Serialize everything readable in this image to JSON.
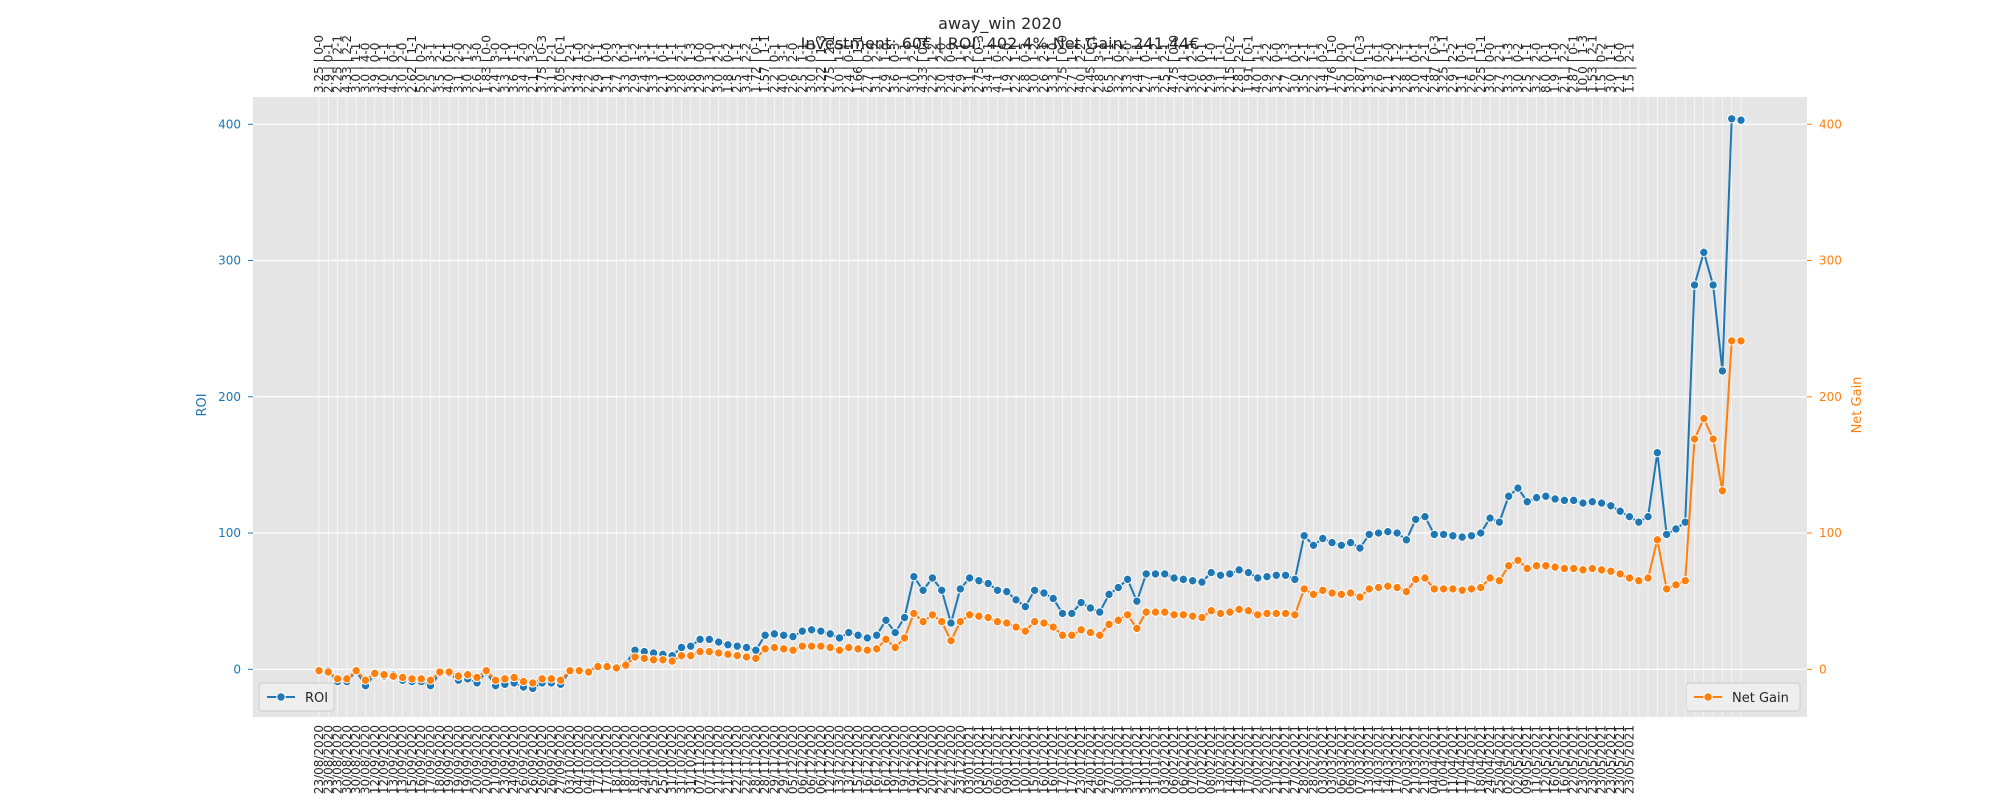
{
  "title_line1": "away_win 2020",
  "title_line2": "Investment: 60€ | ROI: 402.4% Net Gain: 241.44€",
  "colors": {
    "roi": "#1f77b4",
    "net_gain": "#ff7f0e",
    "plot_bg": "#e5e5e5",
    "grid": "#ffffff"
  },
  "chart_data": {
    "type": "line",
    "title": "away_win 2020\nInvestment: 60€ | ROI: 402.4% Net Gain: 241.44€",
    "ylabel_left": "ROI",
    "ylabel_right": "Net Gain",
    "ylim_left": [
      -35,
      420
    ],
    "ylim_right": [
      -35,
      420
    ],
    "yticks_left": [
      0,
      100,
      200,
      300,
      400
    ],
    "yticks_right": [
      0,
      100,
      200,
      300,
      400
    ],
    "grid": true,
    "legend": [
      {
        "label": "ROI",
        "placement": "lower-left"
      },
      {
        "label": "Net Gain",
        "placement": "lower-right"
      }
    ],
    "n_points": 142,
    "x_labels": [
      "23/08/2020",
      "23/08/2020",
      "23/08/2020",
      "30/08/2020",
      "30/08/2020",
      "30/08/2020",
      "12/09/2020",
      "12/09/2020",
      "13/09/2020",
      "13/09/2020",
      "15/09/2020",
      "16/09/2020",
      "17/09/2020",
      "18/09/2020",
      "19/09/2020",
      "19/09/2020",
      "19/09/2020",
      "20/09/2020",
      "20/09/2020",
      "21/09/2020",
      "23/09/2020",
      "24/09/2020",
      "26/09/2020",
      "26/09/2020",
      "26/09/2020",
      "26/09/2020",
      "27/09/2020",
      "03/10/2020",
      "04/10/2020",
      "04/10/2020",
      "17/10/2020",
      "17/10/2020",
      "18/10/2020",
      "18/10/2020",
      "18/10/2020",
      "24/10/2020",
      "25/10/2020",
      "25/10/2020",
      "31/10/2020",
      "31/10/2020",
      "31/10/2020",
      "07/11/2020",
      "07/11/2020",
      "21/11/2020",
      "21/11/2020",
      "22/11/2020",
      "22/11/2020",
      "28/11/2020",
      "28/11/2020",
      "29/11/2020",
      "29/11/2020",
      "05/12/2020",
      "06/12/2020",
      "06/12/2020",
      "06/12/2020",
      "12/12/2020",
      "13/12/2020",
      "13/12/2020",
      "15/12/2020",
      "16/12/2020",
      "16/12/2020",
      "16/12/2020",
      "19/12/2020",
      "19/12/2020",
      "19/12/2020",
      "20/12/2020",
      "20/12/2020",
      "22/12/2020",
      "22/12/2020",
      "23/12/2020",
      "03/01/2021",
      "03/01/2021",
      "05/01/2021",
      "06/01/2021",
      "09/01/2021",
      "10/01/2021",
      "10/01/2021",
      "15/01/2021",
      "16/01/2021",
      "16/01/2021",
      "17/01/2021",
      "17/01/2021",
      "23/01/2021",
      "24/01/2021",
      "26/01/2021",
      "27/01/2021",
      "30/01/2021",
      "30/01/2021",
      "31/01/2021",
      "31/01/2021",
      "31/01/2021",
      "03/02/2021",
      "06/02/2021",
      "06/02/2021",
      "07/02/2021",
      "07/02/2021",
      "08/02/2021",
      "13/02/2021",
      "14/02/2021",
      "14/02/2021",
      "17/02/2021",
      "20/02/2021",
      "20/02/2021",
      "21/02/2021",
      "21/02/2021",
      "27/02/2021",
      "28/02/2021",
      "28/02/2021",
      "03/03/2021",
      "03/03/2021",
      "06/03/2021",
      "06/03/2021",
      "07/03/2021",
      "13/03/2021",
      "14/03/2021",
      "14/03/2021",
      "17/03/2021",
      "20/03/2021",
      "21/03/2021",
      "21/03/2021",
      "04/04/2021",
      "10/04/2021",
      "11/04/2021",
      "11/04/2021",
      "17/04/2021",
      "18/04/2021",
      "24/04/2021",
      "25/04/2021",
      "02/05/2021",
      "02/05/2021",
      "09/05/2021",
      "11/05/2021",
      "12/05/2021",
      "16/05/2021",
      "16/05/2021",
      "22/05/2021",
      "23/05/2021",
      "23/05/2021",
      "23/05/2021",
      "23/05/2021",
      "23/05/2021",
      "23/05/2021"
    ],
    "top_labels": [
      "3.25 | 0-0",
      "2.9 | 0-1",
      "2.25 | 2-1",
      "4.33 | 2-2",
      "3.0 | 1-1",
      "3.0 | 4-0",
      "3.9 | 0-0",
      "4.0 | 1-1",
      "4.5 | 0-1",
      "3.0 | 2-0",
      "2.62 | 1-1",
      "5.0 | 0-2",
      "2.5 | 3-1",
      "3.5 | 2-1",
      "4.0 | 0-1",
      "3.1 | 2-0",
      "3.0 | 1-2",
      "2.6 | 3-0",
      "1.83 | 0-0",
      "2.4 | 3-0",
      "3.3 | 1-0",
      "3.6 | 1-1",
      "3.4 | 2-0",
      "2.1 | 3-2",
      "3.75 | 0-3",
      "3.1 | 2-1",
      "2.05 | 0-1",
      "3.2 | 2-1",
      "3.4 | 1-0",
      "2.2 | 0-2",
      "2.9 | 1-1",
      "3.1 | 0-0",
      "2.7 | 2-3",
      "3.3 | 0-1",
      "2.9 | 1-2",
      "2.4 | 3-1",
      "3.3 | 1-1",
      "2.1 | 0-1",
      "3.0 | 1-1",
      "2.8 | 2-1",
      "3.6 | 1-3",
      "2.9 | 0-0",
      "2.3 | 1-0",
      "3.0 | 2-1",
      "1.8 | 0-2",
      "2.5 | 1-1",
      "3.4 | 2-2",
      "1.72 | 0-1",
      "1.57 | 1-1",
      "2.2 | 0-1",
      "4.0 | 3-1",
      "2.6 | 2-0",
      "2.5 | 1-1",
      "3.0 | 0-0",
      "3.22 | 1-3",
      "2.75 | 2-1",
      "3.0 | 1-0",
      "2.4 | 0-1",
      "1.66 | 1-1",
      "2.7 | 0-2",
      "3.1 | 2-2",
      "2.9 | 1-0",
      "3.6 | 0-3",
      "2.1 | 1-1",
      "3.0 | 2-1",
      "4.33 | 0-1",
      "2.2 | 1-2",
      "3.0 | 2-0",
      "2.4 | 0-0",
      "2.9 | 1-1",
      "3.1 | 2-1",
      "2.75 | 0-3",
      "3.4 | 1-1",
      "4.1 | 0-1",
      "1.9 | 2-0",
      "2.2 | 1-1",
      "2.8 | 0-3",
      "3.0 | 1-2",
      "2.6 | 2-1",
      "3.3 | 1-0",
      "3.75 | 0-0",
      "2.7 | 1-1",
      "4.0 | 2-2",
      "2.45 | 0-1",
      "2.8 | 3-1",
      "6.5 | 1-1",
      "3.2 | 0-2",
      "3.3 | 2-0",
      "2.4 | 1-1",
      "2.7 | 0-1",
      "3.1 | 1-2",
      "2.5 | 2-1",
      "4.75 | 0-0",
      "2.4 | 1-1",
      "3.0 | 2-3",
      "2.6 | 0-1",
      "2.9 | 1-0",
      "3.1 | 1-1",
      "2.15 | 0-2",
      "2.8 | 2-1",
      "1.91 | 0-1",
      "4.0 | 1-1",
      "2.9 | 2-2",
      "3.2 | 0-0",
      "2.7 | 1-3",
      "3.0 | 0-1",
      "3.5 | 2-1",
      "2.2 | 1-1",
      "3.4 | 0-2",
      "1.76 | 1-0",
      "2.5 | 0-0",
      "3.0 | 2-1",
      "2.87 | 0-3",
      "3.3 | 1-1",
      "2.6 | 0-1",
      "2.1 | 2-0",
      "3.2 | 1-2",
      "2.8 | 1-1",
      "3.0 | 0-1",
      "2.4 | 2-1",
      "2.87 | 0-3",
      "3.25 | 1-1",
      "2.9 | 2-2",
      "3.1 | 0-1",
      "2.6 | 1-0",
      "2.25 | 1-1",
      "3.0 | 0-0",
      "2.7 | 2-1",
      "3.3 | 1-3",
      "3.0 | 0-2",
      "2.5 | 1-1",
      "3.2 | 2-0",
      "8.0 | 0-1",
      "1.9 | 1-0",
      "2.1 | 2-2",
      "2.87 | 0-1",
      "10.0 | 1-3",
      "1.53 | 2-1",
      "1.5 | 0-2",
      "3.0 | 1-1",
      "2.1 | 0-0",
      "1.5 | 2-1"
    ],
    "series": [
      {
        "name": "ROI",
        "axis": "left",
        "values": [
          -1,
          -1,
          -9,
          -9,
          -1,
          -12,
          -4,
          -5,
          -4,
          -8,
          -9,
          -9,
          -12,
          -3,
          -3,
          -8,
          -7,
          -10,
          -2,
          -12,
          -11,
          -10,
          -13,
          -14,
          -10,
          -10,
          -11,
          -1,
          -1,
          -2,
          3,
          3,
          1,
          4,
          14,
          13,
          12,
          11,
          10,
          16,
          17,
          22,
          22,
          20,
          18,
          17,
          16,
          14,
          25,
          26,
          25,
          24,
          28,
          29,
          28,
          26,
          23,
          27,
          25,
          23,
          25,
          36,
          27,
          38,
          68,
          58,
          67,
          58,
          34,
          59,
          67,
          65,
          63,
          58,
          57,
          51,
          46,
          58,
          56,
          52,
          41,
          41,
          49,
          45,
          42,
          55,
          60,
          66,
          50,
          70,
          70,
          70,
          67,
          66,
          65,
          64,
          71,
          69,
          70,
          73,
          71,
          67,
          68,
          69,
          69,
          66,
          98,
          91,
          96,
          93,
          91,
          93,
          89,
          99,
          100,
          101,
          100,
          95,
          110,
          112,
          99,
          99,
          98,
          97,
          98,
          100,
          111,
          108,
          127,
          133,
          123,
          126,
          127,
          125,
          124,
          124,
          122,
          123,
          122,
          120,
          116,
          112,
          108,
          112,
          159,
          99,
          103,
          108,
          282,
          306,
          282,
          219,
          404,
          403
        ]
      },
      {
        "name": "Net Gain",
        "axis": "right",
        "values": [
          -1,
          -2,
          -7,
          -7,
          -1,
          -8,
          -3,
          -4,
          -5,
          -6,
          -7,
          -7,
          -8,
          -2,
          -2,
          -5,
          -4,
          -6,
          -1,
          -8,
          -7,
          -6,
          -9,
          -10,
          -7,
          -7,
          -8,
          -1,
          -1,
          -2,
          2,
          2,
          1,
          3,
          9,
          8,
          7,
          7,
          6,
          10,
          10,
          13,
          13,
          12,
          11,
          10,
          9,
          8,
          15,
          16,
          15,
          14,
          17,
          17,
          17,
          16,
          14,
          16,
          15,
          14,
          15,
          22,
          16,
          23,
          41,
          35,
          40,
          35,
          21,
          35,
          40,
          39,
          38,
          35,
          34,
          31,
          28,
          35,
          34,
          31,
          25,
          25,
          29,
          27,
          25,
          33,
          36,
          40,
          30,
          42,
          42,
          42,
          40,
          40,
          39,
          38,
          43,
          41,
          42,
          44,
          43,
          40,
          41,
          41,
          41,
          40,
          59,
          55,
          58,
          56,
          55,
          56,
          53,
          59,
          60,
          61,
          60,
          57,
          66,
          67,
          59,
          59,
          59,
          58,
          59,
          60,
          67,
          65,
          76,
          80,
          74,
          76,
          76,
          75,
          74,
          74,
          73,
          74,
          73,
          72,
          70,
          67,
          65,
          67,
          95,
          59,
          62,
          65,
          169,
          184,
          169,
          131,
          241,
          241
        ]
      }
    ]
  }
}
